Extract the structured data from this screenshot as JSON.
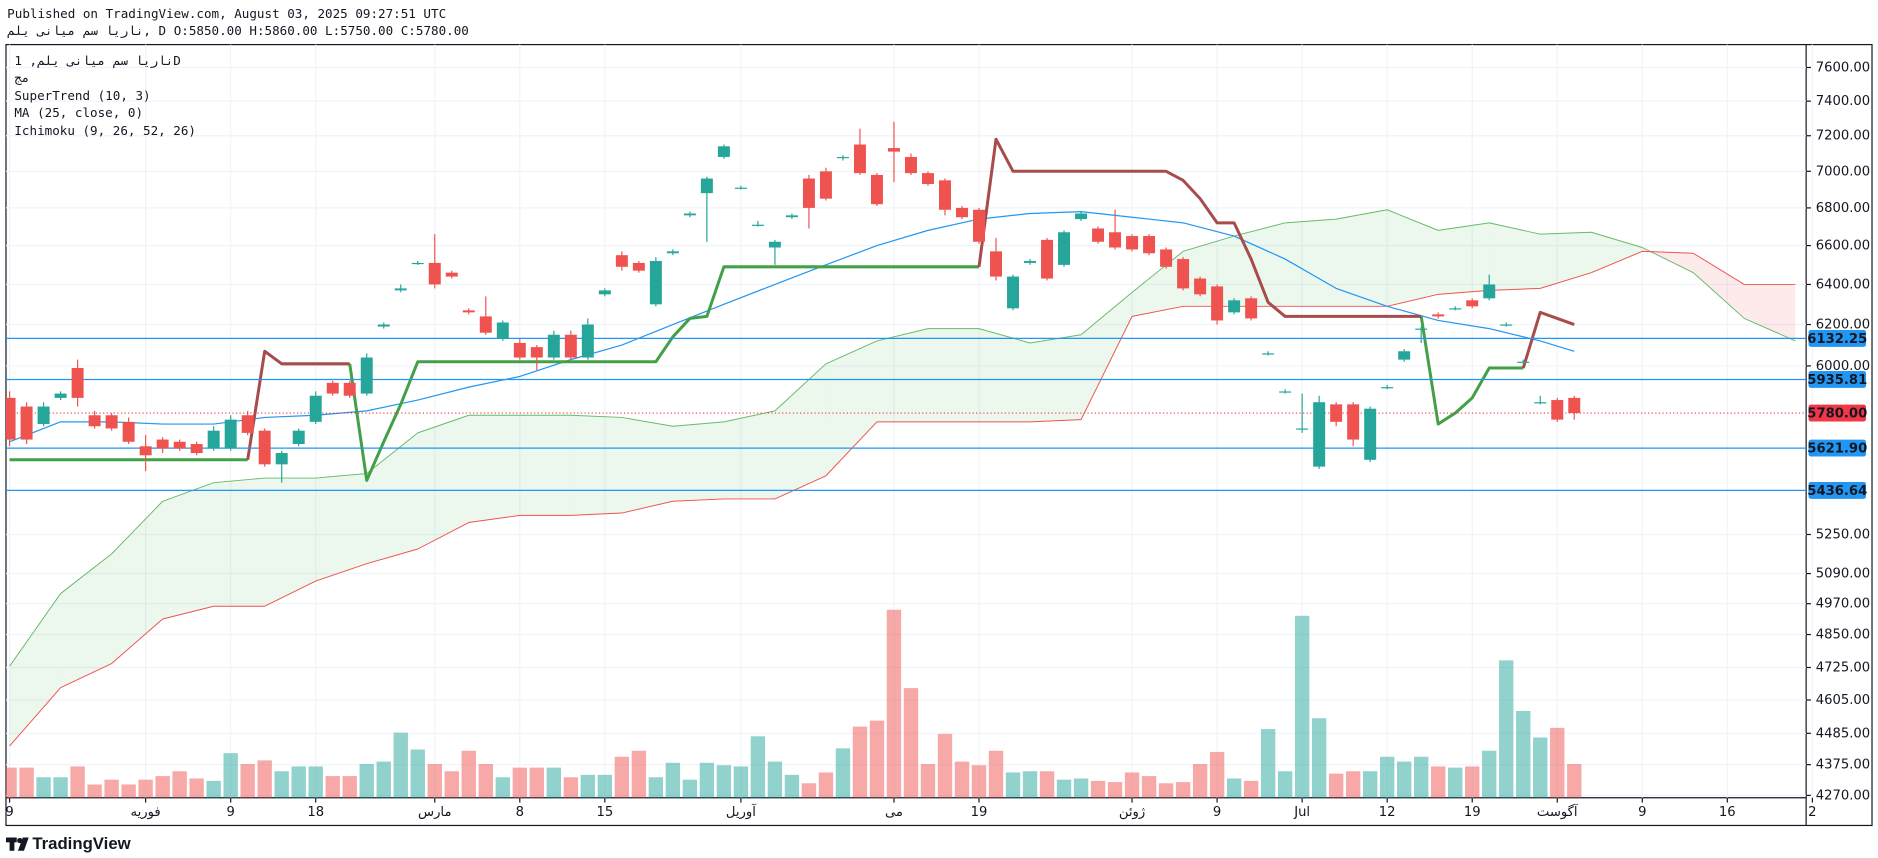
{
  "header": {
    "published": "Published on TradingView.com, August 03, 2025 09:27:51 UTC",
    "ohlc_line": "ناریا سم میانی یلم, D O:5850.00 H:5860.00 L:5750.00 C:5780.00"
  },
  "footer": {
    "brand": "TradingView"
  },
  "chart_data": {
    "type": "candlestick",
    "legend": [
      "ناریا سم میانی یلم, 1D",
      "مج",
      "SuperTrend (10, 3)",
      "MA (25, close, 0)",
      "Ichimoku (9, 26, 52, 26)"
    ],
    "log_scale": true,
    "grid": true,
    "ylim": [
      4270,
      7600
    ],
    "yticks": [
      {
        "value": 7600,
        "label": "7600.00"
      },
      {
        "value": 7400,
        "label": "7400.00"
      },
      {
        "value": 7200,
        "label": "7200.00"
      },
      {
        "value": 7000,
        "label": "7000.00"
      },
      {
        "value": 6800,
        "label": "6800.00"
      },
      {
        "value": 6600,
        "label": "6600.00"
      },
      {
        "value": 6400,
        "label": "6400.00"
      },
      {
        "value": 6200,
        "label": "6200.00"
      },
      {
        "value": 6000,
        "label": "6000.00"
      },
      {
        "value": 5250,
        "label": "5250.00"
      },
      {
        "value": 5090,
        "label": "5090.00"
      },
      {
        "value": 4970,
        "label": "4970.00"
      },
      {
        "value": 4850,
        "label": "4850.00"
      },
      {
        "value": 4725,
        "label": "4725.00"
      },
      {
        "value": 4605,
        "label": "4605.00"
      },
      {
        "value": 4485,
        "label": "4485.00"
      },
      {
        "value": 4375,
        "label": "4375.00"
      },
      {
        "value": 4270,
        "label": "4270.00"
      }
    ],
    "xticks": [
      {
        "value": 0,
        "label": "9"
      },
      {
        "value": 8,
        "label": "فوریه"
      },
      {
        "value": 13,
        "label": "9"
      },
      {
        "value": 18,
        "label": "18"
      },
      {
        "value": 25,
        "label": "مارس"
      },
      {
        "value": 30,
        "label": "8"
      },
      {
        "value": 35,
        "label": "15"
      },
      {
        "value": 43,
        "label": "آوریل"
      },
      {
        "value": 52,
        "label": "می"
      },
      {
        "value": 57,
        "label": "19"
      },
      {
        "value": 66,
        "label": "ژوئن"
      },
      {
        "value": 71,
        "label": "9"
      },
      {
        "value": 76,
        "label": "Jul"
      },
      {
        "value": 81,
        "label": "12"
      },
      {
        "value": 86,
        "label": "19"
      },
      {
        "value": 91,
        "label": "آگوست"
      },
      {
        "value": 96,
        "label": "9"
      },
      {
        "value": 101,
        "label": "16"
      },
      {
        "value": 106,
        "label": "2"
      }
    ],
    "colors": {
      "up": "#26a69a",
      "down": "#ef5350"
    },
    "open": [
      5850,
      5810,
      5730,
      5850,
      5990,
      5770,
      5770,
      5740,
      5630,
      5660,
      5650,
      5640,
      5620,
      5620,
      5770,
      5700,
      5550,
      5640,
      5740,
      5920,
      5920,
      5870,
      6190,
      6370,
      6510,
      6510,
      6460,
      6270,
      6240,
      6130,
      6110,
      6090,
      6040,
      6150,
      6040,
      6350,
      6550,
      6510,
      6300,
      6560,
      6760,
      6880,
      7080,
      6910,
      6710,
      6590,
      6750,
      6960,
      7000,
      7080,
      7150,
      6980,
      7130,
      7080,
      6990,
      6950,
      6800,
      6790,
      6570,
      6280,
      6510,
      6630,
      6500,
      6740,
      6690,
      6670,
      6650,
      6650,
      6580,
      6530,
      6430,
      6390,
      6260,
      6330,
      6060,
      5880,
      5710,
      5540,
      5820,
      5820,
      5570,
      5900,
      6030,
      6180,
      6250,
      6280,
      6320,
      6330,
      6200,
      6020,
      5830,
      5840,
      5850
    ],
    "high": [
      5880,
      5830,
      5830,
      5880,
      6030,
      5790,
      5780,
      5760,
      5680,
      5670,
      5660,
      5650,
      5720,
      5770,
      5790,
      5710,
      5610,
      5710,
      5880,
      5930,
      5930,
      6060,
      6210,
      6400,
      6520,
      6660,
      6470,
      6280,
      6340,
      6220,
      6130,
      6100,
      6170,
      6170,
      6230,
      6380,
      6570,
      6520,
      6540,
      6580,
      6780,
      6970,
      7150,
      6920,
      6730,
      6630,
      6770,
      6980,
      7020,
      7090,
      7240,
      6990,
      7280,
      7100,
      7000,
      6960,
      6810,
      6800,
      6640,
      6450,
      6530,
      6640,
      6680,
      6780,
      6700,
      6790,
      6660,
      6660,
      6590,
      6540,
      6440,
      6400,
      6330,
      6340,
      6070,
      5890,
      5870,
      5860,
      5830,
      5830,
      5810,
      5910,
      6080,
      6190,
      6260,
      6290,
      6330,
      6450,
      6210,
      6030,
      5860,
      5850,
      5860
    ],
    "low": [
      5630,
      5640,
      5720,
      5840,
      5810,
      5710,
      5700,
      5640,
      5520,
      5600,
      5610,
      5590,
      5610,
      5610,
      5680,
      5540,
      5470,
      5630,
      5730,
      5860,
      5850,
      5860,
      6180,
      6360,
      6500,
      6380,
      6430,
      6250,
      6150,
      6120,
      6030,
      5980,
      6030,
      6030,
      6030,
      6340,
      6470,
      6460,
      6290,
      6550,
      6750,
      6620,
      7070,
      6900,
      6700,
      6500,
      6740,
      6690,
      6840,
      7060,
      6980,
      6810,
      6940,
      6980,
      6920,
      6760,
      6740,
      6610,
      6420,
      6270,
      6500,
      6420,
      6490,
      6730,
      6610,
      6580,
      6570,
      6550,
      6480,
      6370,
      6340,
      6200,
      6250,
      6220,
      6050,
      5870,
      5690,
      5530,
      5720,
      5630,
      5560,
      5890,
      6020,
      6110,
      6230,
      6270,
      6280,
      6320,
      6190,
      6010,
      5820,
      5740,
      5750
    ],
    "close": [
      5660,
      5660,
      5810,
      5870,
      5850,
      5720,
      5710,
      5650,
      5590,
      5620,
      5620,
      5600,
      5700,
      5750,
      5690,
      5550,
      5600,
      5700,
      5860,
      5870,
      5860,
      6040,
      6200,
      6380,
      6510,
      6400,
      6440,
      6260,
      6160,
      6210,
      6040,
      6040,
      6150,
      6040,
      6200,
      6370,
      6490,
      6470,
      6520,
      6570,
      6770,
      6960,
      7140,
      6910,
      6710,
      6620,
      6760,
      6800,
      6850,
      7080,
      6990,
      6820,
      7110,
      6990,
      6930,
      6790,
      6750,
      6620,
      6440,
      6440,
      6520,
      6430,
      6670,
      6770,
      6620,
      6590,
      6580,
      6560,
      6490,
      6380,
      6350,
      6220,
      6320,
      6230,
      6060,
      5880,
      5710,
      5830,
      5740,
      5660,
      5800,
      5900,
      6070,
      6180,
      6240,
      6280,
      6290,
      6400,
      6200,
      6020,
      5830,
      5750,
      5780
    ],
    "volume": [
      25,
      25,
      17,
      17,
      26,
      11,
      15,
      11,
      15,
      18,
      22,
      16,
      14,
      37,
      28,
      31,
      22,
      26,
      26,
      18,
      18,
      28,
      30,
      54,
      40,
      28,
      22,
      39,
      28,
      17,
      25,
      25,
      25,
      17,
      19,
      19,
      34,
      39,
      17,
      29,
      15,
      29,
      27,
      26,
      51,
      30,
      19,
      12,
      21,
      41,
      59,
      64,
      156,
      91,
      28,
      53,
      30,
      27,
      39,
      21,
      22,
      22,
      15,
      16,
      14,
      13,
      21,
      18,
      12,
      13,
      28,
      38,
      16,
      14,
      57,
      22,
      151,
      66,
      20,
      22,
      22,
      34,
      30,
      34,
      26,
      25,
      26,
      39,
      114,
      72,
      50,
      58,
      28
    ],
    "supertrend": {
      "up": {
        "color": "#43a047",
        "values": [
          5570,
          5570,
          5570,
          5570,
          5570,
          5570,
          5570,
          5570,
          5570,
          5570,
          5570,
          5570,
          5570,
          5570,
          5570,
          null,
          null,
          null,
          null,
          null,
          6010,
          5480,
          5650,
          5820,
          6020,
          6020,
          6020,
          6020,
          6020,
          6020,
          6020,
          6020,
          6020,
          6020,
          6020,
          6020,
          6020,
          6020,
          6020,
          6140,
          6230,
          6240,
          6490,
          6490,
          6490,
          6490,
          6490,
          6490,
          6490,
          6490,
          6490,
          6490,
          6490,
          6490,
          6490,
          6490,
          6490,
          6490,
          null,
          null,
          null,
          null,
          null,
          null,
          null,
          null,
          null,
          null,
          null,
          null,
          null,
          null,
          null,
          null,
          null,
          null,
          null,
          null,
          null,
          null,
          null,
          null,
          null,
          6240,
          5730,
          5780,
          5850,
          5990,
          5990,
          5990,
          null,
          null,
          null
        ]
      },
      "down": {
        "color": "#a84b4b",
        "values": [
          null,
          null,
          null,
          null,
          null,
          null,
          null,
          null,
          null,
          null,
          null,
          null,
          null,
          null,
          5570,
          6070,
          6010,
          6010,
          6010,
          6010,
          6010,
          null,
          null,
          null,
          null,
          null,
          null,
          null,
          null,
          null,
          null,
          null,
          null,
          null,
          null,
          null,
          null,
          null,
          null,
          null,
          null,
          null,
          null,
          null,
          null,
          null,
          null,
          null,
          null,
          null,
          null,
          null,
          null,
          null,
          null,
          null,
          null,
          6490,
          7180,
          7000,
          7000,
          7000,
          7000,
          7000,
          7000,
          7000,
          7000,
          7000,
          7000,
          6950,
          6850,
          6720,
          6720,
          6530,
          6310,
          6240,
          6240,
          6240,
          6240,
          6240,
          6240,
          6240,
          6240,
          6240,
          null,
          null,
          null,
          null,
          null,
          5990,
          6260,
          6230,
          6200
        ]
      }
    },
    "ma": {
      "color": "#2196f3",
      "x": [
        0,
        3,
        6,
        9,
        12,
        15,
        18,
        21,
        24,
        27,
        30,
        33,
        36,
        39,
        42,
        45,
        48,
        51,
        54,
        57,
        60,
        63,
        66,
        69,
        72,
        75,
        78,
        81,
        84,
        87,
        90,
        92
      ],
      "values": [
        5650,
        5740,
        5740,
        5730,
        5730,
        5760,
        5770,
        5790,
        5840,
        5900,
        5950,
        6030,
        6100,
        6200,
        6300,
        6400,
        6500,
        6600,
        6680,
        6740,
        6770,
        6780,
        6750,
        6720,
        6650,
        6530,
        6380,
        6290,
        6220,
        6180,
        6120,
        6070
      ]
    },
    "ichimoku": {
      "x": [
        0,
        3,
        6,
        9,
        12,
        15,
        18,
        21,
        24,
        27,
        30,
        33,
        36,
        39,
        42,
        45,
        48,
        51,
        54,
        57,
        60,
        63,
        66,
        69,
        72,
        75,
        78,
        81,
        84,
        87,
        90,
        93,
        96,
        99,
        102,
        105
      ],
      "span_a": {
        "color": "#66bb6a",
        "values": [
          4730,
          5010,
          5170,
          5390,
          5470,
          5490,
          5490,
          5510,
          5690,
          5770,
          5770,
          5770,
          5760,
          5720,
          5740,
          5790,
          6010,
          6120,
          6180,
          6180,
          6110,
          6150,
          6360,
          6570,
          6650,
          6720,
          6740,
          6790,
          6680,
          6720,
          6660,
          6670,
          6590,
          6460,
          6230,
          6120
        ]
      },
      "span_b": {
        "color": "#ef5350",
        "values": [
          4440,
          4650,
          4740,
          4910,
          4960,
          4960,
          5060,
          5130,
          5190,
          5300,
          5330,
          5330,
          5340,
          5390,
          5400,
          5400,
          5500,
          5740,
          5740,
          5740,
          5740,
          5750,
          6240,
          6290,
          6290,
          6290,
          6290,
          6290,
          6350,
          6370,
          6380,
          6460,
          6570,
          6560,
          6400,
          6400
        ]
      }
    },
    "price_lines": [
      {
        "value": 6132.25,
        "label": "6132.25",
        "color": "#2196f3"
      },
      {
        "value": 5935.81,
        "label": "5935.81",
        "color": "#2196f3"
      },
      {
        "value": 5621.9,
        "label": "5621.90",
        "color": "#2196f3"
      },
      {
        "value": 5436.64,
        "label": "5436.64",
        "color": "#2196f3"
      }
    ],
    "last_price": {
      "value": 5780,
      "label": "5780.00",
      "color": "#f23645"
    }
  }
}
